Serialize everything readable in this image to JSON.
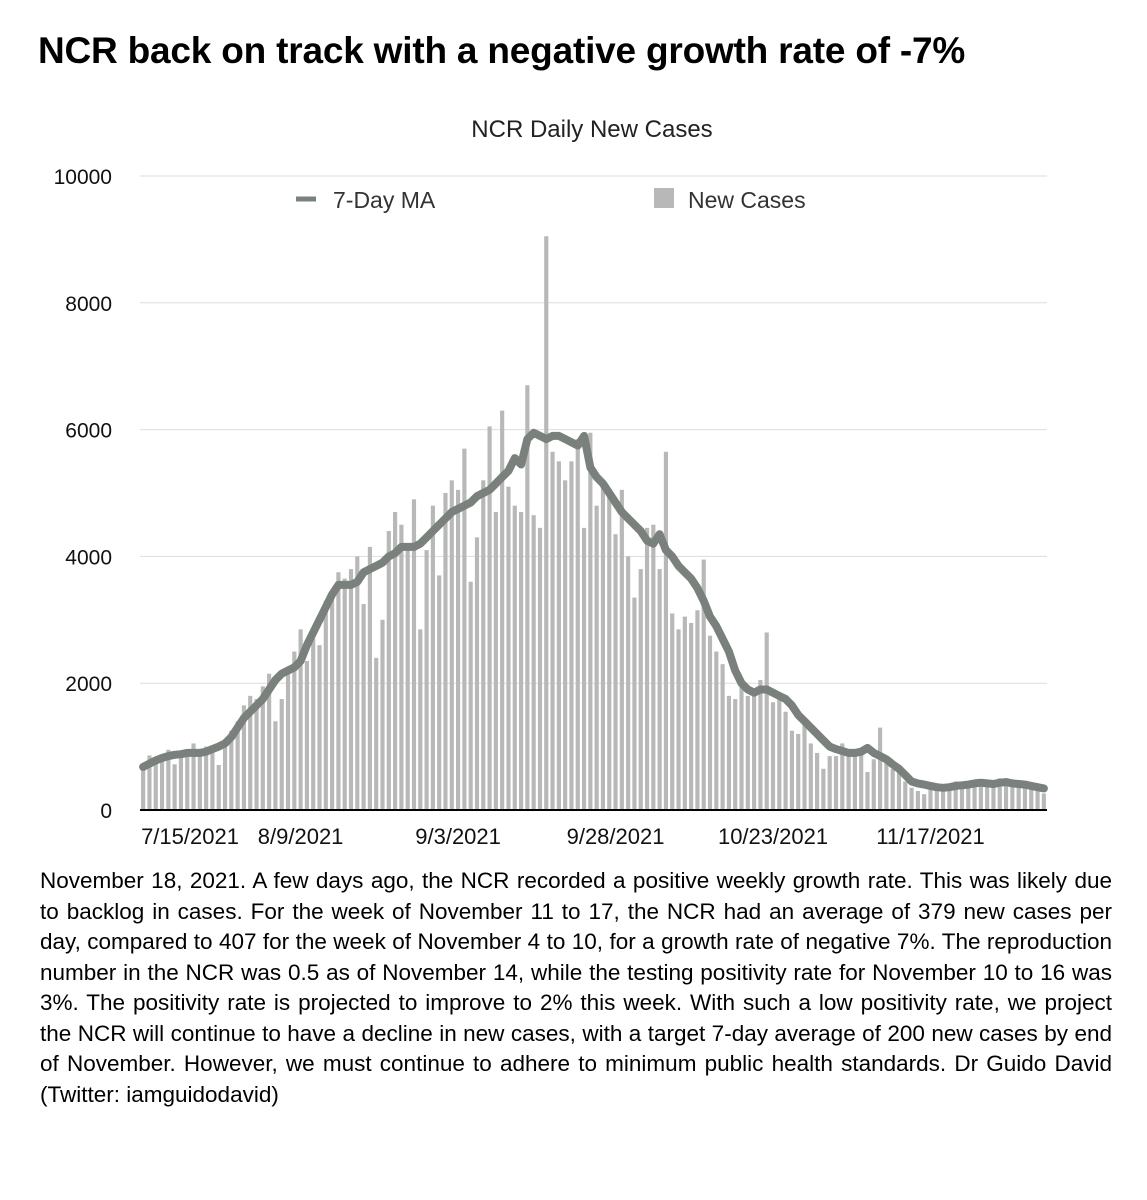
{
  "headline": "NCR back on track with a negative growth rate of -7%",
  "chart_data": {
    "type": "bar",
    "title": "NCR Daily New Cases",
    "xlabel": "",
    "ylabel": "",
    "ylim": [
      0,
      10000
    ],
    "y_ticks": [
      0,
      2000,
      4000,
      6000,
      8000,
      10000
    ],
    "x_start": "2021-07-15",
    "x_tick_labels": [
      "7/15/2021",
      "8/9/2021",
      "9/3/2021",
      "9/28/2021",
      "10/23/2021",
      "11/17/2021"
    ],
    "legend_position": "top",
    "grid": true,
    "colors": {
      "bars": "#b8b8b8",
      "ma_line": "#7a807c",
      "grid": "#dddddd",
      "axis": "#000000"
    },
    "series": [
      {
        "name": "New Cases",
        "type": "bar",
        "values": [
          700,
          860,
          800,
          810,
          950,
          720,
          900,
          920,
          1050,
          950,
          1000,
          1000,
          710,
          1050,
          1250,
          1400,
          1650,
          1800,
          1750,
          1950,
          2150,
          1400,
          1750,
          2250,
          2500,
          2850,
          2350,
          2700,
          2600,
          3300,
          3450,
          3750,
          3650,
          3800,
          4000,
          3250,
          4150,
          2400,
          3000,
          4400,
          4700,
          4500,
          4200,
          4900,
          2850,
          4100,
          4800,
          3700,
          5000,
          5200,
          5050,
          5700,
          3600,
          4300,
          5200,
          6050,
          4700,
          6300,
          5100,
          4800,
          4700,
          6700,
          4650,
          4450,
          9050,
          5650,
          5500,
          5200,
          5500,
          5850,
          4450,
          5950,
          4800,
          5100,
          5000,
          4350,
          5050,
          4000,
          3350,
          3800,
          4450,
          4500,
          3800,
          5650,
          3100,
          2850,
          3050,
          2950,
          3150,
          3950,
          2750,
          2500,
          2300,
          1800,
          1750,
          1950,
          1800,
          1850,
          2050,
          2800,
          1700,
          1850,
          1550,
          1250,
          1200,
          1400,
          1050,
          900,
          650,
          850,
          850,
          1050,
          900,
          850,
          950,
          600,
          800,
          1300,
          850,
          650,
          600,
          450,
          350,
          300,
          250,
          400,
          400,
          330,
          300,
          450,
          330,
          390,
          440,
          400,
          420,
          370,
          500,
          500,
          420,
          400,
          380,
          350,
          300,
          260
        ]
      },
      {
        "name": "7-Day MA",
        "type": "line",
        "values": [
          680,
          730,
          780,
          820,
          850,
          870,
          880,
          900,
          900,
          900,
          920,
          960,
          1000,
          1050,
          1150,
          1300,
          1450,
          1550,
          1650,
          1750,
          1900,
          2050,
          2150,
          2200,
          2250,
          2350,
          2600,
          2800,
          3000,
          3200,
          3400,
          3550,
          3550,
          3550,
          3600,
          3750,
          3800,
          3850,
          3900,
          4000,
          4050,
          4150,
          4150,
          4150,
          4200,
          4300,
          4400,
          4500,
          4600,
          4700,
          4750,
          4800,
          4850,
          4950,
          5000,
          5050,
          5150,
          5250,
          5350,
          5550,
          5450,
          5850,
          5950,
          5900,
          5850,
          5900,
          5900,
          5850,
          5800,
          5750,
          5900,
          5400,
          5250,
          5150,
          5000,
          4850,
          4700,
          4600,
          4500,
          4400,
          4250,
          4200,
          4350,
          4100,
          4000,
          3850,
          3750,
          3650,
          3500,
          3300,
          3050,
          2900,
          2700,
          2500,
          2200,
          2000,
          1900,
          1850,
          1900,
          1900,
          1850,
          1800,
          1750,
          1650,
          1500,
          1400,
          1300,
          1200,
          1100,
          1000,
          960,
          930,
          900,
          900,
          920,
          980,
          900,
          850,
          800,
          720,
          650,
          550,
          450,
          420,
          400,
          380,
          360,
          350,
          360,
          380,
          390,
          400,
          420,
          430,
          420,
          410,
          430,
          440,
          420,
          410,
          400,
          380,
          360,
          340
        ]
      }
    ]
  },
  "caption": "November 18, 2021. A few days ago, the NCR recorded a positive weekly growth rate. This was likely due to backlog in cases. For the week of November 11 to 17, the NCR had an average of 379 new cases per day, compared to 407 for the week of November 4 to 10, for a growth rate of negative 7%. The reproduction number in the NCR was 0.5 as of November 14, while the testing positivity rate for November 10 to 16 was 3%. The positivity rate is projected to improve to 2% this week. With such a low positivity rate, we project the NCR will continue to have a decline in new cases, with a target 7-day average of 200 new cases by end of November. However, we must continue to adhere to minimum public health standards. Dr Guido David (Twitter: iamguidodavid)"
}
